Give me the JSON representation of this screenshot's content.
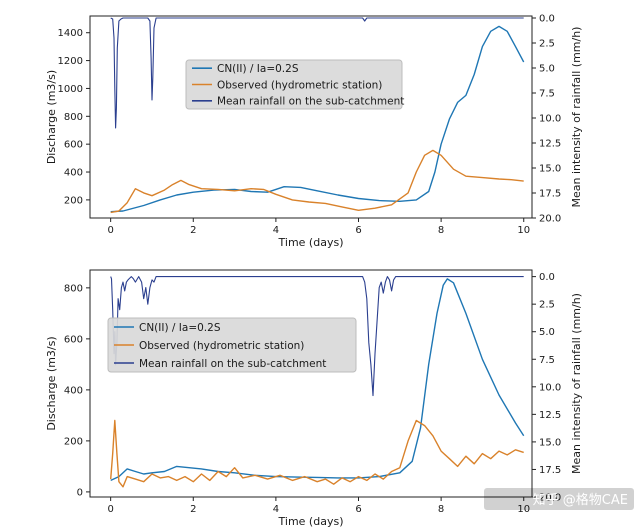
{
  "watermark": "知乎 @格物CAE",
  "colors": {
    "cn": "#1f77b4",
    "observed": "#d9822b",
    "rain": "#2b3f8f"
  },
  "chart_data": [
    {
      "type": "line",
      "xlabel": "Time (days)",
      "ylabel": "Discharge (m3/s)",
      "y2label": "Mean intensity of rainfall (mm/h)",
      "xlim": [
        -0.5,
        10.2
      ],
      "ylim": [
        70,
        1520
      ],
      "y2lim": [
        20,
        -0.2
      ],
      "xticks": [
        "0",
        "2",
        "4",
        "6",
        "8",
        "10"
      ],
      "yticks": [
        "200",
        "400",
        "600",
        "800",
        "1000",
        "1200",
        "1400"
      ],
      "y2ticks": [
        "0.0",
        "2.5",
        "5.0",
        "7.5",
        "10.0",
        "12.5",
        "15.0",
        "17.5",
        "20.0"
      ],
      "legend": {
        "placement": "upper-center",
        "entries": [
          "CN(II) / Ia=0.2S",
          "Observed (hydrometric station)",
          "Mean rainfall on the sub-catchment"
        ]
      },
      "series": [
        {
          "name": "CN(II) / Ia=0.2S",
          "axis": "left",
          "points": [
            [
              0,
              115
            ],
            [
              0.3,
              120
            ],
            [
              0.8,
              160
            ],
            [
              1.2,
              200
            ],
            [
              1.6,
              235
            ],
            [
              2,
              255
            ],
            [
              2.5,
              270
            ],
            [
              3,
              275
            ],
            [
              3.4,
              260
            ],
            [
              3.8,
              255
            ],
            [
              4.2,
              295
            ],
            [
              4.6,
              290
            ],
            [
              5,
              265
            ],
            [
              5.5,
              235
            ],
            [
              6,
              210
            ],
            [
              6.5,
              195
            ],
            [
              7,
              190
            ],
            [
              7.4,
              200
            ],
            [
              7.7,
              260
            ],
            [
              7.85,
              400
            ],
            [
              8,
              600
            ],
            [
              8.2,
              780
            ],
            [
              8.4,
              900
            ],
            [
              8.6,
              950
            ],
            [
              8.8,
              1100
            ],
            [
              9,
              1300
            ],
            [
              9.2,
              1410
            ],
            [
              9.4,
              1445
            ],
            [
              9.6,
              1410
            ],
            [
              9.8,
              1300
            ],
            [
              10,
              1190
            ]
          ]
        },
        {
          "name": "Observed (hydrometric station)",
          "axis": "left",
          "points": [
            [
              0,
              110
            ],
            [
              0.2,
              120
            ],
            [
              0.4,
              180
            ],
            [
              0.6,
              280
            ],
            [
              0.8,
              250
            ],
            [
              1,
              230
            ],
            [
              1.3,
              270
            ],
            [
              1.5,
              310
            ],
            [
              1.7,
              340
            ],
            [
              1.9,
              310
            ],
            [
              2.2,
              280
            ],
            [
              2.6,
              275
            ],
            [
              3,
              265
            ],
            [
              3.4,
              280
            ],
            [
              3.7,
              275
            ],
            [
              4,
              240
            ],
            [
              4.4,
              200
            ],
            [
              4.8,
              185
            ],
            [
              5.2,
              175
            ],
            [
              5.6,
              150
            ],
            [
              6,
              125
            ],
            [
              6.4,
              140
            ],
            [
              6.8,
              165
            ],
            [
              7.2,
              250
            ],
            [
              7.4,
              400
            ],
            [
              7.6,
              520
            ],
            [
              7.8,
              555
            ],
            [
              8,
              520
            ],
            [
              8.3,
              420
            ],
            [
              8.6,
              370
            ],
            [
              9,
              360
            ],
            [
              9.4,
              350
            ],
            [
              9.7,
              345
            ],
            [
              10,
              335
            ]
          ]
        },
        {
          "name": "Mean rainfall on the sub-catchment",
          "axis": "right",
          "points": [
            [
              0,
              0
            ],
            [
              0.05,
              0.1
            ],
            [
              0.08,
              2
            ],
            [
              0.1,
              7
            ],
            [
              0.12,
              11
            ],
            [
              0.14,
              9
            ],
            [
              0.16,
              3
            ],
            [
              0.2,
              0.3
            ],
            [
              0.25,
              0.1
            ],
            [
              0.3,
              0
            ],
            [
              0.9,
              0
            ],
            [
              0.95,
              0.3
            ],
            [
              0.98,
              4
            ],
            [
              1.0,
              8.2
            ],
            [
              1.02,
              6
            ],
            [
              1.05,
              1
            ],
            [
              1.1,
              0
            ],
            [
              6.1,
              0
            ],
            [
              6.15,
              0.3
            ],
            [
              6.2,
              0
            ],
            [
              9.6,
              0
            ],
            [
              10,
              0
            ]
          ]
        }
      ]
    },
    {
      "type": "line",
      "xlabel": "Time (days)",
      "ylabel": "Discharge (m3/s)",
      "y2label": "Mean intensity of rainfall (mm/h)",
      "xlim": [
        -0.5,
        10.2
      ],
      "ylim": [
        -20,
        870
      ],
      "y2lim": [
        20,
        -0.6
      ],
      "xticks": [
        "0",
        "2",
        "4",
        "6",
        "8",
        "10"
      ],
      "yticks": [
        "0",
        "200",
        "400",
        "600",
        "800"
      ],
      "y2ticks": [
        "0.0",
        "2.5",
        "5.0",
        "7.5",
        "10.0",
        "12.5",
        "15.0",
        "17.5",
        "20.0"
      ],
      "legend": {
        "placement": "upper-left",
        "entries": [
          "CN(II) / Ia=0.2S",
          "Observed (hydrometric station)",
          "Mean rainfall on the sub-catchment"
        ]
      },
      "series": [
        {
          "name": "CN(II) / Ia=0.2S",
          "axis": "left",
          "points": [
            [
              0,
              45
            ],
            [
              0.2,
              60
            ],
            [
              0.4,
              90
            ],
            [
              0.6,
              80
            ],
            [
              0.8,
              70
            ],
            [
              1,
              75
            ],
            [
              1.3,
              80
            ],
            [
              1.6,
              100
            ],
            [
              1.9,
              95
            ],
            [
              2.2,
              90
            ],
            [
              2.6,
              80
            ],
            [
              3,
              75
            ],
            [
              3.5,
              65
            ],
            [
              4,
              60
            ],
            [
              4.5,
              58
            ],
            [
              5,
              57
            ],
            [
              5.5,
              55
            ],
            [
              6,
              55
            ],
            [
              6.5,
              60
            ],
            [
              7,
              75
            ],
            [
              7.3,
              120
            ],
            [
              7.5,
              250
            ],
            [
              7.7,
              500
            ],
            [
              7.9,
              700
            ],
            [
              8.05,
              810
            ],
            [
              8.15,
              835
            ],
            [
              8.3,
              820
            ],
            [
              8.6,
              700
            ],
            [
              9,
              520
            ],
            [
              9.4,
              380
            ],
            [
              9.8,
              270
            ],
            [
              10,
              220
            ]
          ]
        },
        {
          "name": "Observed (hydrometric station)",
          "axis": "left",
          "points": [
            [
              0,
              50
            ],
            [
              0.05,
              150
            ],
            [
              0.1,
              280
            ],
            [
              0.15,
              150
            ],
            [
              0.2,
              40
            ],
            [
              0.3,
              20
            ],
            [
              0.4,
              60
            ],
            [
              0.6,
              50
            ],
            [
              0.8,
              40
            ],
            [
              1,
              70
            ],
            [
              1.2,
              55
            ],
            [
              1.4,
              60
            ],
            [
              1.6,
              45
            ],
            [
              1.8,
              60
            ],
            [
              2,
              40
            ],
            [
              2.2,
              70
            ],
            [
              2.4,
              45
            ],
            [
              2.6,
              80
            ],
            [
              2.8,
              60
            ],
            [
              3,
              95
            ],
            [
              3.2,
              55
            ],
            [
              3.5,
              65
            ],
            [
              3.8,
              50
            ],
            [
              4.1,
              65
            ],
            [
              4.4,
              45
            ],
            [
              4.7,
              60
            ],
            [
              5,
              40
            ],
            [
              5.2,
              50
            ],
            [
              5.4,
              30
            ],
            [
              5.6,
              55
            ],
            [
              5.8,
              40
            ],
            [
              6,
              60
            ],
            [
              6.2,
              45
            ],
            [
              6.4,
              70
            ],
            [
              6.6,
              50
            ],
            [
              6.8,
              80
            ],
            [
              7,
              95
            ],
            [
              7.2,
              200
            ],
            [
              7.4,
              280
            ],
            [
              7.6,
              260
            ],
            [
              7.8,
              220
            ],
            [
              8,
              160
            ],
            [
              8.2,
              130
            ],
            [
              8.4,
              100
            ],
            [
              8.6,
              140
            ],
            [
              8.8,
              110
            ],
            [
              9,
              150
            ],
            [
              9.2,
              130
            ],
            [
              9.4,
              160
            ],
            [
              9.6,
              145
            ],
            [
              9.8,
              165
            ],
            [
              10,
              155
            ]
          ]
        },
        {
          "name": "Mean rainfall on the sub-catchment",
          "axis": "right",
          "points": [
            [
              0,
              0
            ],
            [
              0.02,
              0.2
            ],
            [
              0.05,
              3
            ],
            [
              0.08,
              7
            ],
            [
              0.1,
              5
            ],
            [
              0.12,
              8
            ],
            [
              0.15,
              6
            ],
            [
              0.18,
              2
            ],
            [
              0.22,
              3
            ],
            [
              0.26,
              1
            ],
            [
              0.3,
              0.5
            ],
            [
              0.34,
              1.3
            ],
            [
              0.38,
              0.5
            ],
            [
              0.42,
              0.3
            ],
            [
              0.5,
              0
            ],
            [
              0.55,
              0.2
            ],
            [
              0.6,
              0.5
            ],
            [
              0.68,
              0
            ],
            [
              0.75,
              0.5
            ],
            [
              0.8,
              2
            ],
            [
              0.85,
              1
            ],
            [
              0.9,
              2.5
            ],
            [
              0.95,
              1
            ],
            [
              1,
              0.3
            ],
            [
              1.05,
              0.5
            ],
            [
              1.1,
              0
            ],
            [
              6.1,
              0
            ],
            [
              6.15,
              0.5
            ],
            [
              6.2,
              2
            ],
            [
              6.25,
              6
            ],
            [
              6.3,
              8
            ],
            [
              6.35,
              10.8
            ],
            [
              6.4,
              7
            ],
            [
              6.45,
              4
            ],
            [
              6.5,
              1
            ],
            [
              6.55,
              0.5
            ],
            [
              6.6,
              1.5
            ],
            [
              6.65,
              0.5
            ],
            [
              6.7,
              0
            ],
            [
              6.75,
              0.3
            ],
            [
              6.8,
              1.3
            ],
            [
              6.85,
              0.3
            ],
            [
              6.9,
              0
            ],
            [
              10,
              0
            ]
          ]
        }
      ]
    }
  ]
}
